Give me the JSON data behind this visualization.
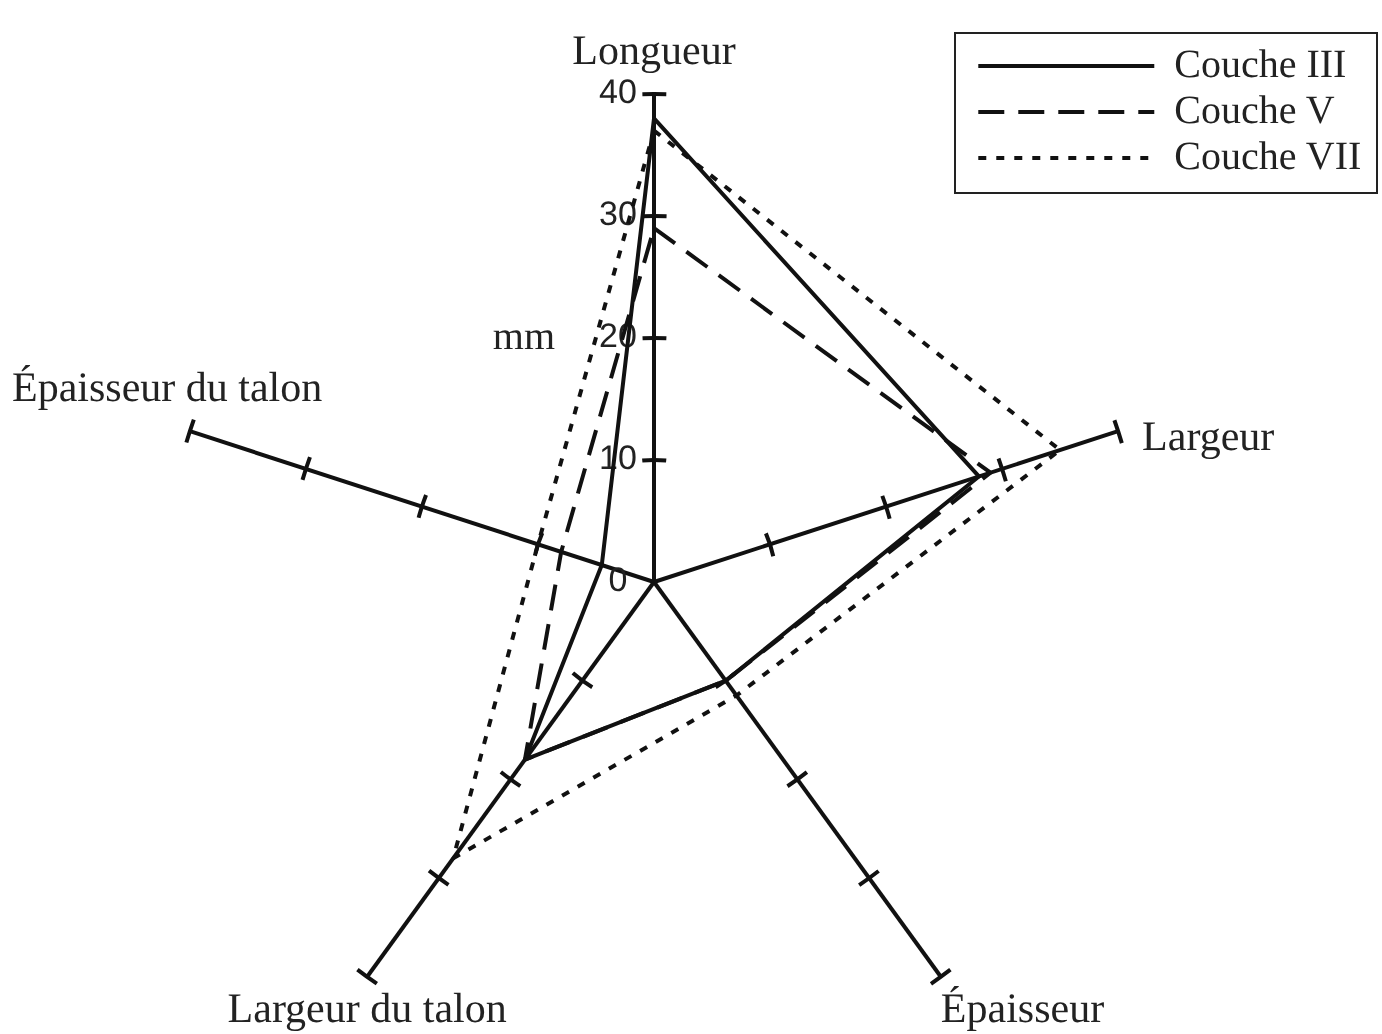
{
  "chart_data": {
    "type": "radar",
    "ylabel": "mm",
    "categories": [
      "Longueur",
      "Largeur",
      "Épaisseur",
      "Largeur du talon",
      "Épaisseur du talon"
    ],
    "series": [
      {
        "name": "Couche III",
        "color": "#111111",
        "line_style": "solid",
        "values": [
          38,
          28,
          10,
          18,
          4.5
        ]
      },
      {
        "name": "Couche V",
        "color": "#111111",
        "line_style": "dashed",
        "values": [
          29,
          29,
          10,
          18,
          8
        ]
      },
      {
        "name": "Couche VII",
        "color": "#111111",
        "line_style": "dotted",
        "values": [
          37,
          35,
          11.5,
          28,
          10
        ]
      }
    ],
    "ylim": [
      0,
      40
    ],
    "yticks": [
      0,
      10,
      20,
      30,
      40
    ],
    "legend": "top right",
    "marker": "none"
  }
}
